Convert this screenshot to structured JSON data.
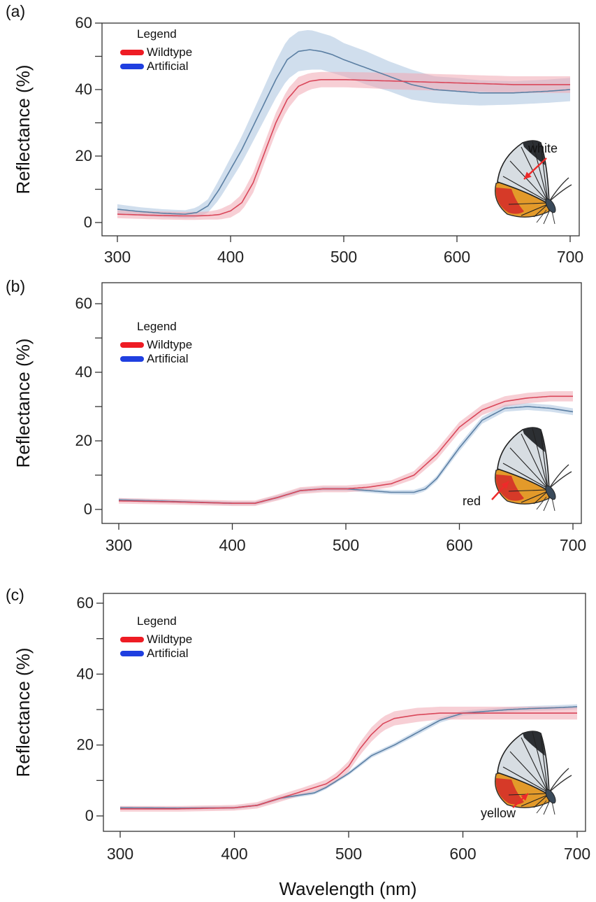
{
  "figure": {
    "xlabel": "Wavelength (nm)"
  },
  "colors": {
    "wildtype": "#d9475a",
    "artificial": "#5b7fa3",
    "wildtype_band": "#f0a8b2",
    "artificial_band": "#a9c3de",
    "legend_wildtype": "#ee1c24",
    "legend_artificial": "#1f3fe0",
    "arrow": "#ee2a2a"
  },
  "chart_data": [
    {
      "type": "line",
      "panel_label": "(a)",
      "ylabel": "Reflectance (%)",
      "xlim": [
        300,
        700
      ],
      "ylim": [
        0,
        60
      ],
      "xticks": [
        300,
        400,
        500,
        600,
        700
      ],
      "yticks": [
        0,
        20,
        40,
        60
      ],
      "legend": {
        "title": "Legend",
        "placement": "top-left",
        "entries": [
          "Wildtype",
          "Artificial"
        ]
      },
      "annotation": "white",
      "series": [
        {
          "name": "Wildtype",
          "x": [
            300,
            320,
            340,
            360,
            370,
            380,
            390,
            400,
            410,
            420,
            430,
            440,
            450,
            460,
            470,
            480,
            500,
            550,
            600,
            650,
            700
          ],
          "y": [
            2.5,
            2.3,
            2.1,
            2.0,
            2.0,
            2.1,
            2.4,
            3.5,
            6,
            12,
            21,
            30,
            37,
            41,
            42.5,
            43,
            43,
            42.5,
            42,
            41.5,
            41.5
          ],
          "band": [
            1.2,
            1.2,
            1.2,
            1.2,
            1.2,
            1.2,
            1.5,
            2,
            2.5,
            3,
            3,
            3,
            3,
            2.8,
            2.5,
            2.3,
            2.3,
            2.5,
            2.5,
            2.5,
            2.5
          ]
        },
        {
          "name": "Artificial",
          "x": [
            300,
            320,
            340,
            360,
            370,
            380,
            390,
            400,
            410,
            420,
            430,
            440,
            450,
            460,
            470,
            480,
            490,
            500,
            520,
            540,
            560,
            580,
            600,
            620,
            650,
            680,
            700
          ],
          "y": [
            4,
            3.3,
            2.8,
            2.5,
            3,
            5,
            10,
            16,
            22,
            29,
            36,
            43,
            49,
            51.5,
            52,
            51.5,
            50.5,
            49,
            46.5,
            44,
            41.5,
            40,
            39.5,
            39,
            39,
            39.5,
            40
          ],
          "band": [
            1.5,
            1.3,
            1.2,
            1.2,
            1.5,
            2,
            3,
            3.5,
            4,
            4.5,
            5,
            5.5,
            6,
            6,
            6,
            5.5,
            5.5,
            5,
            5,
            4.5,
            4.5,
            4,
            4,
            3.8,
            3.5,
            3.5,
            3.5
          ]
        }
      ]
    },
    {
      "type": "line",
      "panel_label": "(b)",
      "ylabel": "Reflectance (%)",
      "xlim": [
        300,
        700
      ],
      "ylim": [
        0,
        60
      ],
      "xticks": [
        300,
        400,
        500,
        600,
        700
      ],
      "yticks": [
        0,
        20,
        40,
        60
      ],
      "legend": {
        "title": "Legend",
        "placement": "top-left",
        "entries": [
          "Wildtype",
          "Artificial"
        ]
      },
      "annotation": "red",
      "series": [
        {
          "name": "Wildtype",
          "x": [
            300,
            350,
            400,
            420,
            440,
            460,
            480,
            500,
            520,
            540,
            560,
            580,
            600,
            620,
            640,
            660,
            680,
            700
          ],
          "y": [
            2.5,
            2.2,
            1.8,
            1.8,
            3.5,
            5.5,
            6,
            6,
            6.5,
            7.5,
            10,
            16,
            24,
            29,
            31.5,
            32.5,
            33,
            33
          ],
          "band": [
            0.8,
            0.8,
            0.8,
            0.8,
            0.9,
            1,
            1,
            1,
            1,
            1,
            1.2,
            1.5,
            1.5,
            1.5,
            1.5,
            1.5,
            1.5,
            1.5
          ]
        },
        {
          "name": "Artificial",
          "x": [
            300,
            350,
            400,
            420,
            440,
            460,
            480,
            500,
            520,
            540,
            560,
            570,
            580,
            600,
            620,
            640,
            660,
            680,
            700
          ],
          "y": [
            2.8,
            2.3,
            1.8,
            1.8,
            3.5,
            5.5,
            6,
            6,
            5.5,
            5,
            5,
            6,
            9,
            18,
            26,
            29.5,
            30,
            29.5,
            28.5
          ],
          "band": [
            0.5,
            0.5,
            0.5,
            0.5,
            0.6,
            0.6,
            0.6,
            0.6,
            0.6,
            0.6,
            0.7,
            0.7,
            0.8,
            1,
            1,
            1,
            1,
            1,
            1
          ]
        }
      ]
    },
    {
      "type": "line",
      "panel_label": "(c)",
      "ylabel": "Reflectance (%)",
      "xlim": [
        300,
        700
      ],
      "ylim": [
        0,
        60
      ],
      "xticks": [
        300,
        400,
        500,
        600,
        700
      ],
      "yticks": [
        0,
        20,
        40,
        60
      ],
      "legend": {
        "title": "Legend",
        "placement": "top-left",
        "entries": [
          "Wildtype",
          "Artificial"
        ]
      },
      "annotation": "yellow",
      "series": [
        {
          "name": "Wildtype",
          "x": [
            300,
            350,
            400,
            420,
            440,
            460,
            480,
            490,
            500,
            510,
            520,
            530,
            540,
            560,
            580,
            600,
            650,
            700
          ],
          "y": [
            2,
            2,
            2.3,
            3,
            5,
            7,
            9,
            11,
            14,
            19,
            23,
            26,
            27.5,
            28.5,
            29,
            29,
            29,
            29
          ],
          "band": [
            0.8,
            0.8,
            0.8,
            0.9,
            1,
            1,
            1.2,
            1.3,
            1.5,
            1.8,
            2,
            2,
            2,
            2,
            1.8,
            1.8,
            1.8,
            1.8
          ]
        },
        {
          "name": "Artificial",
          "x": [
            300,
            350,
            400,
            420,
            440,
            460,
            470,
            480,
            490,
            500,
            510,
            520,
            530,
            540,
            560,
            580,
            600,
            620,
            640,
            660,
            680,
            700
          ],
          "y": [
            2.3,
            2.2,
            2.3,
            3,
            5,
            6,
            6.5,
            8,
            10,
            12,
            14.5,
            17,
            18.5,
            20,
            23.5,
            27,
            29,
            29.5,
            30,
            30.3,
            30.5,
            30.8
          ],
          "band": [
            0.4,
            0.4,
            0.4,
            0.4,
            0.5,
            0.5,
            0.5,
            0.5,
            0.5,
            0.5,
            0.6,
            0.6,
            0.6,
            0.6,
            0.7,
            0.7,
            0.7,
            0.7,
            0.7,
            0.7,
            0.7,
            0.7
          ]
        }
      ]
    }
  ]
}
